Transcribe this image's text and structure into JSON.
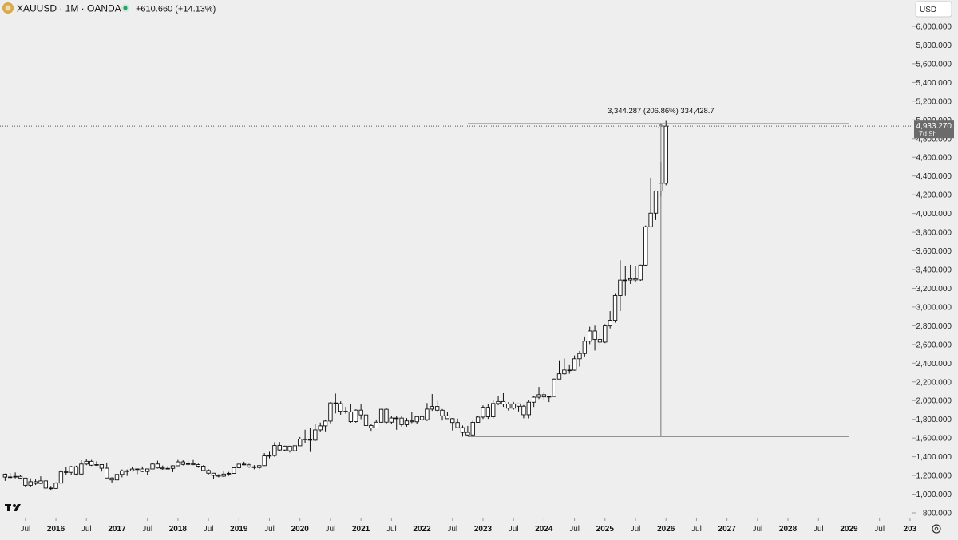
{
  "chart_data": {
    "type": "candlestick",
    "title": "XAUUSD · 1M · OANDA",
    "change_label": "+610.660 (+14.13%)",
    "currency": "USD",
    "last_price_label": "4,933.270",
    "countdown": "7d 9h",
    "up_color": "#ffffff",
    "down_color": "#ffffff",
    "outline_color": "#111111",
    "x": [
      "2015-03",
      "2015-04",
      "2015-05",
      "2015-06",
      "2015-07",
      "2015-08",
      "2015-09",
      "2015-10",
      "2015-11",
      "2015-12",
      "2016-01",
      "2016-02",
      "2016-03",
      "2016-04",
      "2016-05",
      "2016-06",
      "2016-07",
      "2016-08",
      "2016-09",
      "2016-10",
      "2016-11",
      "2016-12",
      "2017-01",
      "2017-02",
      "2017-03",
      "2017-04",
      "2017-05",
      "2017-06",
      "2017-07",
      "2017-08",
      "2017-09",
      "2017-10",
      "2017-11",
      "2017-12",
      "2018-01",
      "2018-02",
      "2018-03",
      "2018-04",
      "2018-05",
      "2018-06",
      "2018-07",
      "2018-08",
      "2018-09",
      "2018-10",
      "2018-11",
      "2018-12",
      "2019-01",
      "2019-02",
      "2019-03",
      "2019-04",
      "2019-05",
      "2019-06",
      "2019-07",
      "2019-08",
      "2019-09",
      "2019-10",
      "2019-11",
      "2019-12",
      "2020-01",
      "2020-02",
      "2020-03",
      "2020-04",
      "2020-05",
      "2020-06",
      "2020-07",
      "2020-08",
      "2020-09",
      "2020-10",
      "2020-11",
      "2020-12",
      "2021-01",
      "2021-02",
      "2021-03",
      "2021-04",
      "2021-05",
      "2021-06",
      "2021-07",
      "2021-08",
      "2021-09",
      "2021-10",
      "2021-11",
      "2021-12",
      "2022-01",
      "2022-02",
      "2022-03",
      "2022-04",
      "2022-05",
      "2022-06",
      "2022-07",
      "2022-08",
      "2022-09",
      "2022-10",
      "2022-11",
      "2022-12",
      "2023-01",
      "2023-02",
      "2023-03",
      "2023-04",
      "2023-05",
      "2023-06",
      "2023-07",
      "2023-08",
      "2023-09",
      "2023-10",
      "2023-11",
      "2023-12",
      "2024-01",
      "2024-02",
      "2024-03",
      "2024-04",
      "2024-05",
      "2024-06",
      "2024-07",
      "2024-08",
      "2024-09",
      "2024-10",
      "2024-11",
      "2024-12",
      "2025-01",
      "2025-02",
      "2025-03",
      "2025-04",
      "2025-05",
      "2025-06",
      "2025-07",
      "2025-08",
      "2025-09",
      "2025-10",
      "2025-11",
      "2025-12",
      "2026-01"
    ],
    "open": [
      1213,
      1183,
      1184,
      1190,
      1172,
      1095,
      1133,
      1115,
      1142,
      1065,
      1061,
      1118,
      1238,
      1233,
      1293,
      1215,
      1322,
      1351,
      1309,
      1316,
      1277,
      1173,
      1152,
      1211,
      1249,
      1249,
      1268,
      1269,
      1242,
      1269,
      1322,
      1280,
      1271,
      1275,
      1303,
      1345,
      1318,
      1325,
      1315,
      1299,
      1253,
      1224,
      1201,
      1192,
      1215,
      1222,
      1282,
      1321,
      1313,
      1292,
      1284,
      1305,
      1409,
      1413,
      1520,
      1472,
      1513,
      1464,
      1517,
      1589,
      1585,
      1577,
      1687,
      1730,
      1781,
      1975,
      1968,
      1886,
      1879,
      1776,
      1898,
      1847,
      1734,
      1708,
      1769,
      1907,
      1770,
      1814,
      1813,
      1743,
      1783,
      1774,
      1829,
      1796,
      1909,
      1937,
      1897,
      1837,
      1807,
      1766,
      1711,
      1660,
      1633,
      1768,
      1824,
      1928,
      1827,
      1969,
      1990,
      1963,
      1919,
      1965,
      1940,
      1849,
      1983,
      2036,
      2063,
      2039,
      2044,
      2230,
      2286,
      2327,
      2326,
      2447,
      2503,
      2635,
      2744,
      2654,
      2625,
      2798,
      2858,
      3123,
      3288,
      3289,
      3303,
      3290,
      3448,
      3858,
      4003,
      4239,
      4322
    ],
    "high": [
      1220,
      1224,
      1232,
      1205,
      1175,
      1170,
      1157,
      1191,
      1146,
      1088,
      1127,
      1263,
      1287,
      1303,
      1304,
      1362,
      1375,
      1366,
      1352,
      1317,
      1338,
      1181,
      1220,
      1264,
      1263,
      1295,
      1270,
      1296,
      1270,
      1330,
      1357,
      1306,
      1299,
      1309,
      1366,
      1362,
      1356,
      1365,
      1326,
      1309,
      1266,
      1227,
      1214,
      1243,
      1237,
      1284,
      1326,
      1347,
      1325,
      1310,
      1306,
      1439,
      1453,
      1555,
      1557,
      1518,
      1516,
      1525,
      1611,
      1689,
      1704,
      1747,
      1765,
      1789,
      1984,
      2075,
      1992,
      1933,
      1966,
      1906,
      1959,
      1872,
      1755,
      1798,
      1912,
      1917,
      1832,
      1834,
      1837,
      1814,
      1877,
      1831,
      1853,
      1974,
      2070,
      1998,
      1910,
      1879,
      1814,
      1808,
      1735,
      1730,
      1786,
      1833,
      1949,
      1960,
      2009,
      2049,
      2079,
      1984,
      1987,
      1967,
      1953,
      2009,
      2052,
      2146,
      2088,
      2053,
      2236,
      2431,
      2450,
      2387,
      2483,
      2531,
      2685,
      2790,
      2801,
      2726,
      2817,
      2956,
      3148,
      3500,
      3435,
      3452,
      3439,
      3453,
      3872,
      4381,
      4245,
      4550,
      4990
    ],
    "low": [
      1142,
      1170,
      1169,
      1162,
      1077,
      1080,
      1098,
      1108,
      1052,
      1046,
      1058,
      1107,
      1208,
      1207,
      1200,
      1207,
      1310,
      1301,
      1302,
      1241,
      1171,
      1123,
      1147,
      1180,
      1195,
      1242,
      1214,
      1236,
      1205,
      1266,
      1273,
      1260,
      1264,
      1236,
      1302,
      1307,
      1303,
      1310,
      1282,
      1246,
      1211,
      1160,
      1180,
      1183,
      1196,
      1221,
      1275,
      1310,
      1281,
      1266,
      1266,
      1301,
      1382,
      1400,
      1459,
      1458,
      1445,
      1454,
      1516,
      1547,
      1451,
      1568,
      1670,
      1671,
      1757,
      1863,
      1849,
      1860,
      1764,
      1765,
      1802,
      1717,
      1677,
      1705,
      1765,
      1751,
      1751,
      1688,
      1722,
      1721,
      1759,
      1753,
      1780,
      1781,
      1890,
      1872,
      1787,
      1805,
      1681,
      1709,
      1615,
      1618,
      1616,
      1765,
      1804,
      1805,
      1810,
      1950,
      1933,
      1893,
      1903,
      1884,
      1811,
      1810,
      1932,
      2017,
      2002,
      1984,
      2039,
      2228,
      2277,
      2287,
      2319,
      2364,
      2472,
      2604,
      2536,
      2583,
      2614,
      2772,
      2833,
      2957,
      3121,
      3247,
      3268,
      3281,
      3436,
      3850,
      3930,
      4180,
      4300
    ],
    "close": [
      1183,
      1184,
      1190,
      1172,
      1095,
      1133,
      1115,
      1142,
      1065,
      1061,
      1118,
      1238,
      1233,
      1293,
      1215,
      1322,
      1351,
      1309,
      1316,
      1277,
      1173,
      1152,
      1211,
      1249,
      1249,
      1268,
      1269,
      1242,
      1269,
      1322,
      1280,
      1271,
      1275,
      1303,
      1345,
      1318,
      1325,
      1315,
      1299,
      1253,
      1224,
      1201,
      1192,
      1215,
      1222,
      1282,
      1321,
      1313,
      1292,
      1284,
      1305,
      1409,
      1413,
      1520,
      1472,
      1513,
      1464,
      1517,
      1589,
      1585,
      1577,
      1687,
      1730,
      1781,
      1975,
      1968,
      1886,
      1879,
      1776,
      1898,
      1847,
      1734,
      1708,
      1769,
      1907,
      1770,
      1814,
      1813,
      1743,
      1783,
      1774,
      1829,
      1796,
      1909,
      1937,
      1897,
      1837,
      1807,
      1766,
      1711,
      1660,
      1633,
      1768,
      1824,
      1928,
      1827,
      1969,
      1990,
      1963,
      1919,
      1965,
      1940,
      1849,
      1983,
      2036,
      2063,
      2039,
      2044,
      2230,
      2286,
      2327,
      2326,
      2447,
      2503,
      2635,
      2744,
      2654,
      2625,
      2798,
      2858,
      3123,
      3288,
      3289,
      3303,
      3290,
      3448,
      3858,
      4003,
      4239,
      4322,
      4933
    ],
    "xlim": [
      "2015-02",
      "2030-04"
    ],
    "xticks": [
      {
        "value": "2015-07",
        "label": "Jul"
      },
      {
        "value": "2016-01",
        "label": "2016"
      },
      {
        "value": "2016-07",
        "label": "Jul"
      },
      {
        "value": "2017-01",
        "label": "2017"
      },
      {
        "value": "2017-07",
        "label": "Jul"
      },
      {
        "value": "2018-01",
        "label": "2018"
      },
      {
        "value": "2018-07",
        "label": "Jul"
      },
      {
        "value": "2019-01",
        "label": "2019"
      },
      {
        "value": "2019-07",
        "label": "Jul"
      },
      {
        "value": "2020-01",
        "label": "2020"
      },
      {
        "value": "2020-07",
        "label": "Jul"
      },
      {
        "value": "2021-01",
        "label": "2021"
      },
      {
        "value": "2021-07",
        "label": "Jul"
      },
      {
        "value": "2022-01",
        "label": "2022"
      },
      {
        "value": "2022-07",
        "label": "Jul"
      },
      {
        "value": "2023-01",
        "label": "2023"
      },
      {
        "value": "2023-07",
        "label": "Jul"
      },
      {
        "value": "2024-01",
        "label": "2024"
      },
      {
        "value": "2024-07",
        "label": "Jul"
      },
      {
        "value": "2025-01",
        "label": "2025"
      },
      {
        "value": "2025-07",
        "label": "Jul"
      },
      {
        "value": "2026-01",
        "label": "2026"
      },
      {
        "value": "2026-07",
        "label": "Jul"
      },
      {
        "value": "2027-01",
        "label": "2027"
      },
      {
        "value": "2027-07",
        "label": "Jul"
      },
      {
        "value": "2028-01",
        "label": "2028"
      },
      {
        "value": "2028-07",
        "label": "Jul"
      },
      {
        "value": "2029-01",
        "label": "2029"
      },
      {
        "value": "2029-07",
        "label": "Jul"
      },
      {
        "value": "2030-01",
        "label": "203"
      }
    ],
    "ylim": [
      800,
      6000
    ],
    "yticks": [
      {
        "value": 800,
        "label": "800.000"
      },
      {
        "value": 1000,
        "label": "1,000.000"
      },
      {
        "value": 1200,
        "label": "1,200.000"
      },
      {
        "value": 1400,
        "label": "1,400.000"
      },
      {
        "value": 1600,
        "label": "1,600.000"
      },
      {
        "value": 1800,
        "label": "1,800.000"
      },
      {
        "value": 2000,
        "label": "2,000.000"
      },
      {
        "value": 2200,
        "label": "2,200.000"
      },
      {
        "value": 2400,
        "label": "2,400.000"
      },
      {
        "value": 2600,
        "label": "2,600.000"
      },
      {
        "value": 2800,
        "label": "2,800.000"
      },
      {
        "value": 3000,
        "label": "3,000.000"
      },
      {
        "value": 3200,
        "label": "3,200.000"
      },
      {
        "value": 3400,
        "label": "3,400.000"
      },
      {
        "value": 3600,
        "label": "3,600.000"
      },
      {
        "value": 3800,
        "label": "3,800.000"
      },
      {
        "value": 4000,
        "label": "4,000.000"
      },
      {
        "value": 4200,
        "label": "4,200.000"
      },
      {
        "value": 4400,
        "label": "4,400.000"
      },
      {
        "value": 4600,
        "label": "4,600.000"
      },
      {
        "value": 4800,
        "label": "4,800.000"
      },
      {
        "value": 5000,
        "label": "5,000.000"
      },
      {
        "value": 5200,
        "label": "5,200.000"
      },
      {
        "value": 5400,
        "label": "5,400.000"
      },
      {
        "value": 5600,
        "label": "5,600.000"
      },
      {
        "value": 5800,
        "label": "5,800.000"
      },
      {
        "value": 6000,
        "label": "6,000.000"
      }
    ],
    "measure": {
      "label": "3,344.287 (206.86%) 334,428.7",
      "low": 1616,
      "high": 4960,
      "from": "2022-10",
      "to": "2029-01",
      "arrow_at": "2025-12"
    }
  }
}
